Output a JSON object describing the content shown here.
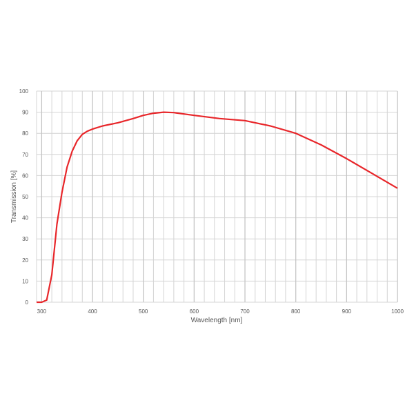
{
  "chart_data": {
    "type": "line",
    "title": "",
    "xlabel": "Wavelength [nm]",
    "ylabel": "Transmission [%]",
    "xlim": [
      290,
      1000
    ],
    "ylim": [
      0,
      100
    ],
    "xticks": [
      300,
      400,
      500,
      600,
      700,
      800,
      900,
      1000
    ],
    "yticks": [
      0,
      10,
      20,
      30,
      40,
      50,
      60,
      70,
      80,
      90,
      100
    ],
    "x_minor_step": 20,
    "grid": true,
    "line_color": "#e8262a",
    "grid_color": "#d4d4d4",
    "series": [
      {
        "x": [
          290,
          300,
          310,
          320,
          330,
          340,
          350,
          360,
          370,
          380,
          390,
          400,
          420,
          450,
          480,
          500,
          520,
          540,
          560,
          600,
          650,
          700,
          750,
          800,
          850,
          900,
          950,
          1000
        ],
        "y": [
          0,
          0,
          1,
          13,
          37,
          52,
          64,
          71.5,
          76.5,
          79.5,
          81,
          82,
          83.5,
          85,
          87,
          88.5,
          89.5,
          90,
          89.8,
          88.5,
          87,
          86,
          83.5,
          80,
          74.5,
          68,
          61,
          54
        ]
      }
    ]
  }
}
